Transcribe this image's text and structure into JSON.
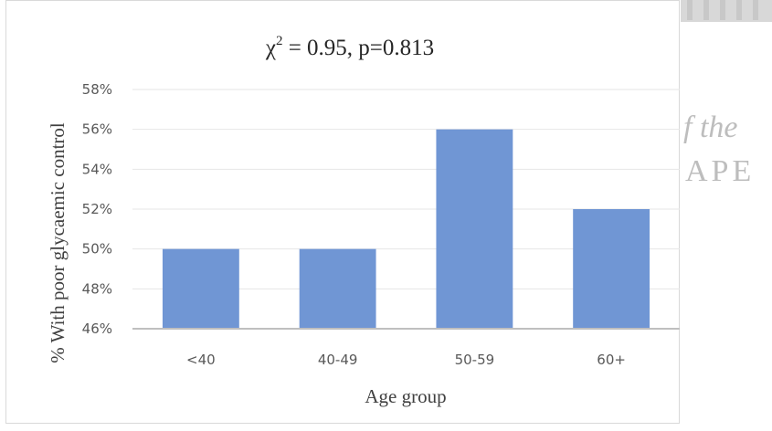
{
  "watermark": {
    "line1": "f the",
    "line2": "APE"
  },
  "chart_data": {
    "type": "bar",
    "title_main": "χ",
    "title_sup": "2",
    "title_rest": " = 0.95, p=0.813",
    "xlabel": "Age group",
    "ylabel": "% With poor glycaemic control",
    "categories": [
      "<40",
      "40-49",
      "50-59",
      "60+"
    ],
    "values": [
      50,
      50,
      56,
      52
    ],
    "ylim": [
      46,
      58
    ],
    "yticks": [
      46,
      48,
      50,
      52,
      54,
      56,
      58
    ],
    "ytick_labels": [
      "46%",
      "48%",
      "50%",
      "52%",
      "54%",
      "56%",
      "58%"
    ],
    "grid": true,
    "legend": "none",
    "bar_color": "#7096d4"
  }
}
